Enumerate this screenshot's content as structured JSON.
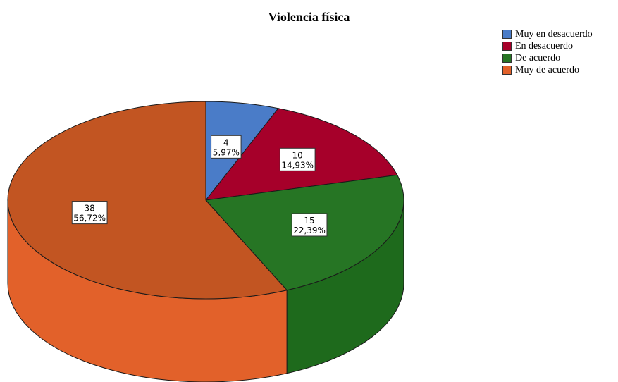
{
  "chart_data": {
    "type": "pie",
    "title": "Violencia física",
    "categories": [
      "Muy en desacuerdo",
      "En desacuerdo",
      "De acuerdo",
      "Muy de acuerdo"
    ],
    "values": [
      4,
      10,
      15,
      38
    ],
    "percent_labels": [
      "5,97%",
      "14,93%",
      "22,39%",
      "56,72%"
    ],
    "colors": [
      "#4a7cc8",
      "#a6002a",
      "#267524",
      "#e2612a"
    ],
    "top_colors": [
      "#4a7cc8",
      "#a6002a",
      "#267524",
      "#c25522"
    ],
    "side_colors": [
      "#3d69ab",
      "#8c0023",
      "#1e6a1c",
      "#e2612a"
    ],
    "legend_position": "top-right",
    "style": "3d"
  }
}
